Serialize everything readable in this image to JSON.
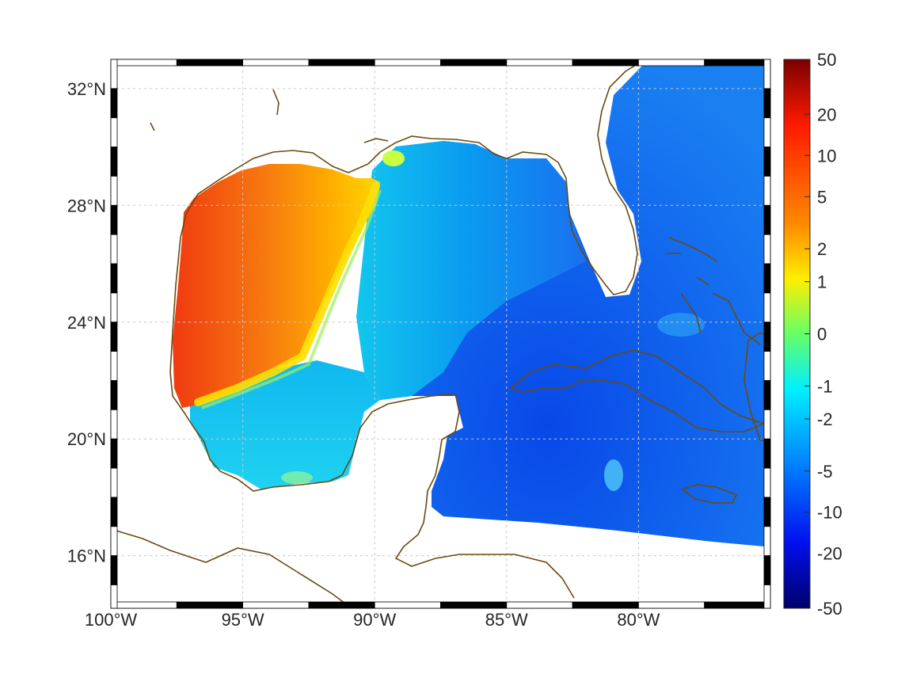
{
  "map": {
    "region": "Gulf of Mexico and Caribbean",
    "lon_range": [
      -100,
      -75
    ],
    "lat_range": [
      14.2,
      33
    ],
    "lon_ticks": [
      {
        "value": -100,
        "label": "100°W"
      },
      {
        "value": -95,
        "label": "95°W"
      },
      {
        "value": -90,
        "label": "90°W"
      },
      {
        "value": -85,
        "label": "85°W"
      },
      {
        "value": -80,
        "label": "80°W"
      }
    ],
    "lat_ticks": [
      {
        "value": 32,
        "label": "32°N"
      },
      {
        "value": 28,
        "label": "28°N"
      },
      {
        "value": 24,
        "label": "24°N"
      },
      {
        "value": 20,
        "label": "20°N"
      },
      {
        "value": 16,
        "label": "16°N"
      }
    ],
    "grid": true,
    "coastline_color": "#6b4a0f",
    "land_color": "#ffffff"
  },
  "colorbar": {
    "ticks": [
      "50",
      "20",
      "10",
      "5",
      "2",
      "1",
      "0",
      "-1",
      "-2",
      "-5",
      "-10",
      "-20",
      "-50"
    ],
    "range": [
      -50,
      50
    ],
    "colors": [
      "#800000",
      "#ff0000",
      "#ff8000",
      "#ffff00",
      "#80ff80",
      "#00ffff",
      "#0080ff",
      "#0000ff",
      "#000080"
    ]
  }
}
